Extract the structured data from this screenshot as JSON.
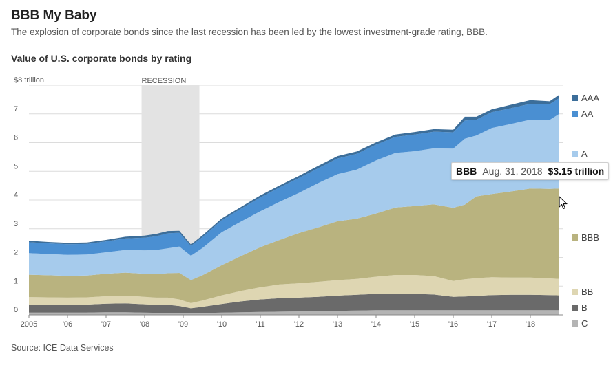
{
  "header": {
    "title": "BBB My Baby",
    "subtitle": "The explosion of corporate bonds since the last recession has been led by the lowest investment-grade rating, BBB.",
    "chart_title": "Value of U.S. corporate bonds by rating",
    "source": "Source: ICE Data Services"
  },
  "tooltip": {
    "series": "BBB",
    "date": "Aug. 31, 2018",
    "value": "$3.15 trillion"
  },
  "chart_data": {
    "type": "area",
    "stacked": true,
    "title": "Value of U.S. corporate bonds by rating",
    "ylabel": "$ trillion",
    "ylim": [
      0,
      8
    ],
    "grid": true,
    "y_ticks": [
      "0",
      "1",
      "2",
      "3",
      "4",
      "5",
      "6",
      "7",
      "$8 trillion"
    ],
    "x_ticks": [
      "2005",
      "'06",
      "'07",
      "'08",
      "'09",
      "'10",
      "'11",
      "'12",
      "'13",
      "'14",
      "'15",
      "'16",
      "'17",
      "'18"
    ],
    "recession": {
      "label": "RECESSION",
      "start": 2007.92,
      "end": 2009.42
    },
    "colors": {
      "AAA": "#3c6e9a",
      "AA": "#4a8fd2",
      "A": "#a6cbec",
      "BBB": "#b9b37f",
      "BB": "#ded6b2",
      "B": "#6a6a6a",
      "C": "#b4b4b4"
    },
    "legend": [
      "AAA",
      "AA",
      "A",
      "BBB",
      "BB",
      "B",
      "C"
    ],
    "x": [
      2005.0,
      2005.5,
      2006.0,
      2006.5,
      2007.0,
      2007.5,
      2008.0,
      2008.3,
      2008.6,
      2008.9,
      2009.2,
      2009.5,
      2010.0,
      2010.5,
      2011.0,
      2011.5,
      2012.0,
      2012.5,
      2013.0,
      2013.5,
      2014.0,
      2014.5,
      2015.0,
      2015.5,
      2016.0,
      2016.3,
      2016.6,
      2017.0,
      2017.5,
      2018.0,
      2018.5,
      2018.75
    ],
    "series": [
      {
        "name": "C",
        "values": [
          0.08,
          0.08,
          0.08,
          0.08,
          0.09,
          0.09,
          0.08,
          0.07,
          0.07,
          0.06,
          0.05,
          0.06,
          0.08,
          0.09,
          0.1,
          0.11,
          0.12,
          0.13,
          0.14,
          0.15,
          0.16,
          0.16,
          0.16,
          0.16,
          0.16,
          0.16,
          0.16,
          0.16,
          0.16,
          0.16,
          0.16,
          0.16
        ]
      },
      {
        "name": "B",
        "values": [
          0.28,
          0.28,
          0.27,
          0.28,
          0.3,
          0.31,
          0.29,
          0.28,
          0.28,
          0.25,
          0.18,
          0.22,
          0.3,
          0.38,
          0.44,
          0.47,
          0.48,
          0.5,
          0.53,
          0.55,
          0.57,
          0.58,
          0.57,
          0.55,
          0.47,
          0.48,
          0.5,
          0.53,
          0.54,
          0.54,
          0.53,
          0.52
        ]
      },
      {
        "name": "BB",
        "values": [
          0.26,
          0.25,
          0.25,
          0.25,
          0.26,
          0.27,
          0.26,
          0.25,
          0.25,
          0.23,
          0.18,
          0.22,
          0.3,
          0.36,
          0.42,
          0.48,
          0.5,
          0.52,
          0.54,
          0.55,
          0.6,
          0.65,
          0.66,
          0.64,
          0.55,
          0.6,
          0.62,
          0.62,
          0.6,
          0.6,
          0.58,
          0.57
        ]
      },
      {
        "name": "BBB",
        "values": [
          0.78,
          0.77,
          0.76,
          0.76,
          0.78,
          0.8,
          0.8,
          0.82,
          0.85,
          0.92,
          0.8,
          0.88,
          1.05,
          1.22,
          1.4,
          1.55,
          1.75,
          1.9,
          2.05,
          2.1,
          2.2,
          2.35,
          2.4,
          2.5,
          2.55,
          2.6,
          2.85,
          2.9,
          3.0,
          3.1,
          3.12,
          3.15
        ]
      },
      {
        "name": "A",
        "values": [
          0.75,
          0.74,
          0.73,
          0.73,
          0.75,
          0.79,
          0.82,
          0.84,
          0.87,
          0.92,
          0.85,
          0.95,
          1.15,
          1.2,
          1.25,
          1.33,
          1.4,
          1.54,
          1.64,
          1.71,
          1.85,
          1.9,
          1.91,
          1.95,
          2.06,
          2.3,
          2.12,
          2.3,
          2.35,
          2.4,
          2.4,
          2.6
        ]
      },
      {
        "name": "AA",
        "values": [
          0.38,
          0.37,
          0.37,
          0.37,
          0.38,
          0.4,
          0.44,
          0.48,
          0.52,
          0.48,
          0.34,
          0.38,
          0.42,
          0.45,
          0.48,
          0.5,
          0.52,
          0.52,
          0.55,
          0.55,
          0.55,
          0.56,
          0.58,
          0.58,
          0.57,
          0.63,
          0.55,
          0.55,
          0.55,
          0.55,
          0.55,
          0.55
        ]
      },
      {
        "name": "AAA",
        "values": [
          0.05,
          0.05,
          0.05,
          0.05,
          0.05,
          0.06,
          0.07,
          0.08,
          0.08,
          0.07,
          0.05,
          0.06,
          0.06,
          0.06,
          0.07,
          0.07,
          0.07,
          0.08,
          0.08,
          0.08,
          0.08,
          0.08,
          0.09,
          0.09,
          0.09,
          0.13,
          0.1,
          0.1,
          0.12,
          0.13,
          0.1,
          0.12
        ]
      }
    ]
  }
}
